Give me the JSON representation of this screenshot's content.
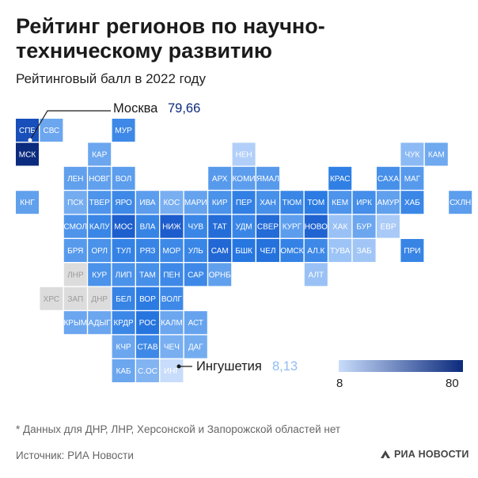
{
  "header": {
    "title": "Рейтинг регионов по научно-техническому развитию",
    "subtitle": "Рейтинговый балл в 2022 году"
  },
  "callouts": {
    "top": {
      "name": "Москва",
      "value": "79,66"
    },
    "bottom": {
      "name": "Ингушетия",
      "value": "8,13"
    }
  },
  "legend": {
    "min_label": "8",
    "max_label": "80",
    "color_low": "#c9dcfb",
    "color_high": "#0b2a7c"
  },
  "footer": {
    "note": "* Данных для ДНР, ЛНР, Херсонской и Запорожской областей нет",
    "source": "Источник: РИА Новости",
    "brand": "РИА НОВОСТИ"
  },
  "colors": {
    "no_data": "#dcdcdc",
    "no_data_text": "#9a9a9a",
    "ramp": [
      "#c9dcfb",
      "#8fbcf4",
      "#4a92ea",
      "#2879e2",
      "#1b56c7",
      "#0b2a7c"
    ]
  },
  "chart_data": {
    "type": "heatmap",
    "title": "Рейтинг регионов по научно-техническому развитию",
    "subtitle": "Рейтинговый балл в 2022 году",
    "value_range": [
      8,
      80
    ],
    "note": "Tile-grid map of Russian regions; color intensity encodes rating score",
    "regions": [
      {
        "code": "СПБ",
        "col": 0,
        "row": 0,
        "value": 68
      },
      {
        "code": "СВС",
        "col": 1,
        "row": 0,
        "value": 30
      },
      {
        "code": "МУР",
        "col": 4,
        "row": 0,
        "value": 42
      },
      {
        "code": "МСК",
        "col": 0,
        "row": 1,
        "value": 79.66
      },
      {
        "code": "КАР",
        "col": 3,
        "row": 1,
        "value": 30
      },
      {
        "code": "НЕН",
        "col": 9,
        "row": 1,
        "value": 14
      },
      {
        "code": "ЧУК",
        "col": 16,
        "row": 1,
        "value": 23
      },
      {
        "code": "КАМ",
        "col": 17,
        "row": 1,
        "value": 29
      },
      {
        "code": "ЛЕН",
        "col": 2,
        "row": 2,
        "value": 32
      },
      {
        "code": "НОВГ",
        "col": 3,
        "row": 2,
        "value": 32
      },
      {
        "code": "ВОЛ",
        "col": 4,
        "row": 2,
        "value": 33
      },
      {
        "code": "АРХ",
        "col": 8,
        "row": 2,
        "value": 34
      },
      {
        "code": "КОМИ",
        "col": 9,
        "row": 2,
        "value": 33
      },
      {
        "code": "ЯМАЛ",
        "col": 10,
        "row": 2,
        "value": 34
      },
      {
        "code": "КРАС",
        "col": 13,
        "row": 2,
        "value": 48
      },
      {
        "code": "САХА",
        "col": 15,
        "row": 2,
        "value": 38
      },
      {
        "code": "МАГ",
        "col": 16,
        "row": 2,
        "value": 34
      },
      {
        "code": "КНГ",
        "col": 0,
        "row": 3,
        "value": 32
      },
      {
        "code": "ПСК",
        "col": 2,
        "row": 3,
        "value": 28
      },
      {
        "code": "ТВЕР",
        "col": 3,
        "row": 3,
        "value": 36
      },
      {
        "code": "ЯРО",
        "col": 4,
        "row": 3,
        "value": 42
      },
      {
        "code": "ИВА",
        "col": 5,
        "row": 3,
        "value": 33
      },
      {
        "code": "КОС",
        "col": 6,
        "row": 3,
        "value": 27
      },
      {
        "code": "МАРИ",
        "col": 7,
        "row": 3,
        "value": 31
      },
      {
        "code": "КИР",
        "col": 8,
        "row": 3,
        "value": 37
      },
      {
        "code": "ПЕР",
        "col": 9,
        "row": 3,
        "value": 47
      },
      {
        "code": "ХАН",
        "col": 10,
        "row": 3,
        "value": 38
      },
      {
        "code": "ТЮМ",
        "col": 11,
        "row": 3,
        "value": 44
      },
      {
        "code": "ТОМ",
        "col": 12,
        "row": 3,
        "value": 50
      },
      {
        "code": "КЕМ",
        "col": 13,
        "row": 3,
        "value": 36
      },
      {
        "code": "ИРК",
        "col": 14,
        "row": 3,
        "value": 39
      },
      {
        "code": "АМУР",
        "col": 15,
        "row": 3,
        "value": 32
      },
      {
        "code": "ХАБ",
        "col": 16,
        "row": 3,
        "value": 43
      },
      {
        "code": "СХЛН",
        "col": 18,
        "row": 3,
        "value": 33
      },
      {
        "code": "СМОЛ",
        "col": 2,
        "row": 4,
        "value": 36
      },
      {
        "code": "КАЛУ",
        "col": 3,
        "row": 4,
        "value": 44
      },
      {
        "code": "МОС",
        "col": 4,
        "row": 4,
        "value": 62
      },
      {
        "code": "ВЛА",
        "col": 5,
        "row": 4,
        "value": 45
      },
      {
        "code": "НИЖ",
        "col": 6,
        "row": 4,
        "value": 63
      },
      {
        "code": "ЧУВ",
        "col": 7,
        "row": 4,
        "value": 44
      },
      {
        "code": "ТАТ",
        "col": 8,
        "row": 4,
        "value": 56
      },
      {
        "code": "УДМ",
        "col": 9,
        "row": 4,
        "value": 44
      },
      {
        "code": "СВЕР",
        "col": 10,
        "row": 4,
        "value": 57
      },
      {
        "code": "КУРГ",
        "col": 11,
        "row": 4,
        "value": 33
      },
      {
        "code": "НОВО",
        "col": 12,
        "row": 4,
        "value": 60
      },
      {
        "code": "ХАК",
        "col": 13,
        "row": 4,
        "value": 20
      },
      {
        "code": "БУР",
        "col": 14,
        "row": 4,
        "value": 30
      },
      {
        "code": "ЕВР",
        "col": 15,
        "row": 4,
        "value": 16
      },
      {
        "code": "БРЯ",
        "col": 2,
        "row": 5,
        "value": 34
      },
      {
        "code": "ОРЛ",
        "col": 3,
        "row": 5,
        "value": 37
      },
      {
        "code": "ТУЛ",
        "col": 4,
        "row": 5,
        "value": 46
      },
      {
        "code": "РЯЗ",
        "col": 5,
        "row": 5,
        "value": 45
      },
      {
        "code": "МОР",
        "col": 6,
        "row": 5,
        "value": 42
      },
      {
        "code": "УЛЬ",
        "col": 7,
        "row": 5,
        "value": 44
      },
      {
        "code": "САМ",
        "col": 8,
        "row": 5,
        "value": 58
      },
      {
        "code": "БШК",
        "col": 9,
        "row": 5,
        "value": 52
      },
      {
        "code": "ЧЕЛ",
        "col": 10,
        "row": 5,
        "value": 54
      },
      {
        "code": "ОМСК",
        "col": 11,
        "row": 5,
        "value": 46
      },
      {
        "code": "АЛ.К",
        "col": 12,
        "row": 5,
        "value": 42
      },
      {
        "code": "ТУВА",
        "col": 13,
        "row": 5,
        "value": 19
      },
      {
        "code": "ЗАБ",
        "col": 14,
        "row": 5,
        "value": 18
      },
      {
        "code": "ПРИ",
        "col": 16,
        "row": 5,
        "value": 45
      },
      {
        "code": "ЛНР",
        "col": 2,
        "row": 6,
        "value": null
      },
      {
        "code": "КУР",
        "col": 3,
        "row": 6,
        "value": 37
      },
      {
        "code": "ЛИП",
        "col": 4,
        "row": 6,
        "value": 37
      },
      {
        "code": "ТАМ",
        "col": 5,
        "row": 6,
        "value": 38
      },
      {
        "code": "ПЕН",
        "col": 6,
        "row": 6,
        "value": 42
      },
      {
        "code": "САР",
        "col": 7,
        "row": 6,
        "value": 42
      },
      {
        "code": "ОРНБ",
        "col": 8,
        "row": 6,
        "value": 32
      },
      {
        "code": "АЛТ",
        "col": 12,
        "row": 6,
        "value": 20
      },
      {
        "code": "ХРС",
        "col": 1,
        "row": 7,
        "value": null
      },
      {
        "code": "ЗАП",
        "col": 2,
        "row": 7,
        "value": null
      },
      {
        "code": "ДНР",
        "col": 3,
        "row": 7,
        "value": null
      },
      {
        "code": "БЕЛ",
        "col": 4,
        "row": 7,
        "value": 45
      },
      {
        "code": "ВОР",
        "col": 5,
        "row": 7,
        "value": 50
      },
      {
        "code": "ВОЛГ",
        "col": 6,
        "row": 7,
        "value": 42
      },
      {
        "code": "КРЫМ",
        "col": 2,
        "row": 8,
        "value": 30
      },
      {
        "code": "АДЫГ",
        "col": 3,
        "row": 8,
        "value": 30
      },
      {
        "code": "КРДР",
        "col": 4,
        "row": 8,
        "value": 43
      },
      {
        "code": "РОС",
        "col": 5,
        "row": 8,
        "value": 53
      },
      {
        "code": "КАЛМ",
        "col": 6,
        "row": 8,
        "value": 30
      },
      {
        "code": "АСТ",
        "col": 7,
        "row": 8,
        "value": 31
      },
      {
        "code": "КЧР",
        "col": 4,
        "row": 9,
        "value": 30
      },
      {
        "code": "СТАВ",
        "col": 5,
        "row": 9,
        "value": 42
      },
      {
        "code": "ЧЕЧ",
        "col": 6,
        "row": 9,
        "value": 27
      },
      {
        "code": "ДАГ",
        "col": 7,
        "row": 9,
        "value": 28
      },
      {
        "code": "КАБ",
        "col": 4,
        "row": 10,
        "value": 30
      },
      {
        "code": "С.ОС",
        "col": 5,
        "row": 10,
        "value": 25
      },
      {
        "code": "ИНГ",
        "col": 6,
        "row": 10,
        "value": 8.13
      }
    ]
  }
}
